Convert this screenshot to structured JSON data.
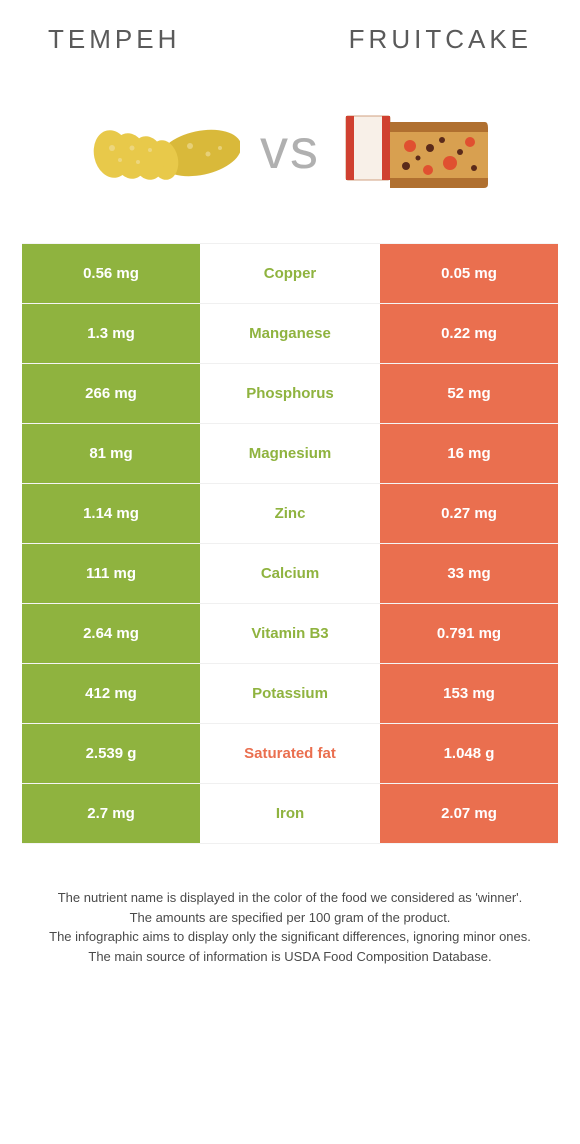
{
  "header": {
    "left_title": "TEMPEH",
    "right_title": "FRUITCAKE"
  },
  "vs_label": "vs",
  "colors": {
    "left": "#8fb33f",
    "right": "#ea6f4f",
    "mid_bg": "#ffffff",
    "left_text": "#8fb33f",
    "right_text": "#ea6f4f"
  },
  "rows": [
    {
      "left": "0.56 mg",
      "name": "Copper",
      "right": "0.05 mg",
      "winner": "left"
    },
    {
      "left": "1.3 mg",
      "name": "Manganese",
      "right": "0.22 mg",
      "winner": "left"
    },
    {
      "left": "266 mg",
      "name": "Phosphorus",
      "right": "52 mg",
      "winner": "left"
    },
    {
      "left": "81 mg",
      "name": "Magnesium",
      "right": "16 mg",
      "winner": "left"
    },
    {
      "left": "1.14 mg",
      "name": "Zinc",
      "right": "0.27 mg",
      "winner": "left"
    },
    {
      "left": "111 mg",
      "name": "Calcium",
      "right": "33 mg",
      "winner": "left"
    },
    {
      "left": "2.64 mg",
      "name": "Vitamin B3",
      "right": "0.791 mg",
      "winner": "left"
    },
    {
      "left": "412 mg",
      "name": "Potassium",
      "right": "153 mg",
      "winner": "left"
    },
    {
      "left": "2.539 g",
      "name": "Saturated fat",
      "right": "1.048 g",
      "winner": "right"
    },
    {
      "left": "2.7 mg",
      "name": "Iron",
      "right": "2.07 mg",
      "winner": "left"
    }
  ],
  "footer": {
    "line1": "The nutrient name is displayed in the color of the food we considered as 'winner'.",
    "line2": "The amounts are specified per 100 gram of the product.",
    "line3": "The infographic aims to display only the significant differences, ignoring minor ones.",
    "line4": "The main source of information is USDA Food Composition Database."
  }
}
